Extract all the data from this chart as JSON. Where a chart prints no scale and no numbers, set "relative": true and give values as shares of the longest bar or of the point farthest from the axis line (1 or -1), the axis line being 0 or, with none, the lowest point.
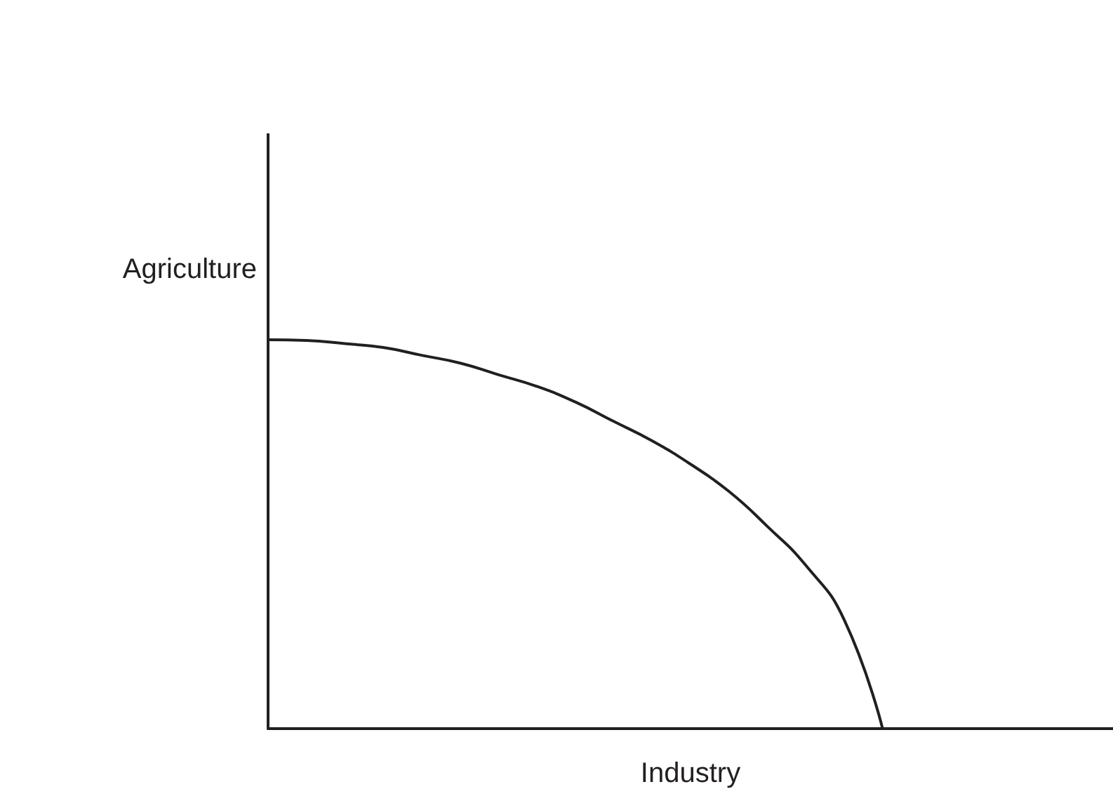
{
  "chart_data": {
    "type": "line",
    "xlabel": "Industry",
    "ylabel": "Agriculture",
    "relative": true,
    "tick_labels": false,
    "grid": false,
    "marker": "none",
    "line_style": "solid",
    "color": "#231f20",
    "categories": [
      null,
      null,
      null,
      null,
      null,
      null,
      null,
      null,
      null,
      null,
      null,
      null,
      null,
      null,
      null,
      null,
      null,
      null,
      null,
      null,
      null,
      null,
      null
    ],
    "values": [
      1,
      0.998,
      0.99,
      0.98,
      0.96,
      0.94,
      0.91,
      0.88,
      0.84,
      0.79,
      0.74,
      0.68,
      0.61,
      0.52,
      0.42,
      0.28,
      0,
      null,
      null,
      null,
      null,
      null,
      null
    ]
  }
}
